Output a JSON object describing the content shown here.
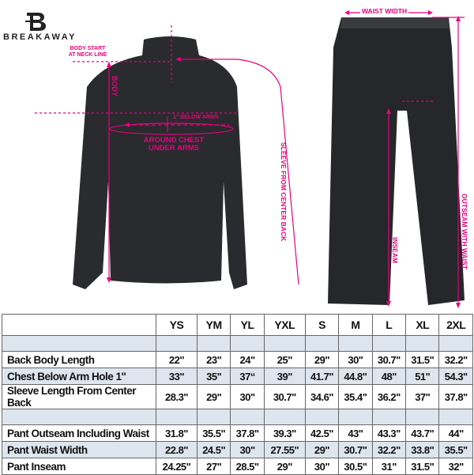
{
  "brand": {
    "name": "BREAKAWAY",
    "logo_letter": "B"
  },
  "colors": {
    "accent": "#e6007e",
    "garment": "#2a2b2e",
    "row_highlight": "#dde6ee"
  },
  "annotations": {
    "body_start": "BODY START AT NECK LINE",
    "body": "BODY",
    "below_arms": "1\" BELOW ARMS",
    "around_chest": "AROUND CHEST UNDER ARMS",
    "sleeve": "SLEEVE FROM CENTER BACK",
    "waist_width": "WAIST WIDTH",
    "inseam": "INSEAM",
    "outseam": "OUTSEAM WITH WAIST"
  },
  "table": {
    "sizes": [
      "YS",
      "YM",
      "YL",
      "YXL",
      "S",
      "M",
      "L",
      "XL",
      "2XL"
    ],
    "rows": [
      {
        "label": "Back Body Length",
        "values": [
          "22\"",
          "23\"",
          "24\"",
          "25\"",
          "29\"",
          "30\"",
          "30.7\"",
          "31.5\"",
          "32.2\""
        ]
      },
      {
        "label": "Chest Below Arm Hole 1\"",
        "values": [
          "33\"",
          "35\"",
          "37“",
          "39\"",
          "41.7\"",
          "44.8\"",
          "48\"",
          "51\"",
          "54.3\""
        ]
      },
      {
        "label": "Sleeve Length From Center Back",
        "values": [
          "28.3\"",
          "29\"",
          "30\"",
          "30.7\"",
          "34.6\"",
          "35.4\"",
          "36.2\"",
          "37\"",
          "37.8\""
        ]
      },
      {
        "label": "Pant Outseam Including Waist",
        "values": [
          "31.8\"",
          "35.5\"",
          "37.8\"",
          "39.3\"",
          "42.5\"",
          "43\"",
          "43.3\"",
          "43.7\"",
          "44\""
        ]
      },
      {
        "label": "Pant Waist Width",
        "values": [
          "22.8\"",
          "24.5\"",
          "30\"",
          "27.55\"",
          "29\"",
          "30.7\"",
          "32.2\"",
          "33.8\"",
          "35.5\""
        ]
      },
      {
        "label": "Pant Inseam",
        "values": [
          "24.25\"",
          "27\"",
          "28.5\"",
          "29\"",
          "30\"",
          "30.5\"",
          "31\"",
          "31.5\"",
          "32\""
        ]
      }
    ]
  }
}
